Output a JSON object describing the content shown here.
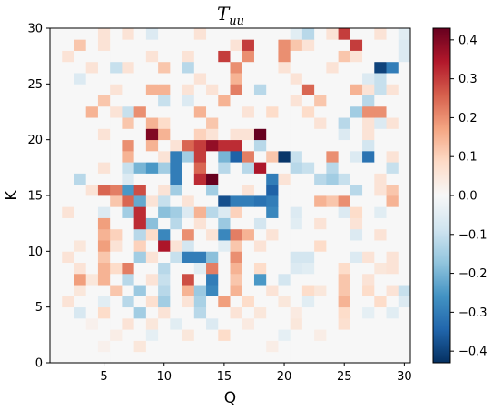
{
  "chart_data": {
    "type": "heatmap",
    "title": "T",
    "title_subscript": "uu",
    "xlabel": "Q",
    "ylabel": "K",
    "xlim": [
      0.5,
      30.5
    ],
    "ylim": [
      0,
      30
    ],
    "xticks": [
      5,
      10,
      15,
      20,
      25,
      30
    ],
    "xtick_labels": [
      "5",
      "10",
      "15",
      "20",
      "25",
      "30"
    ],
    "yticks": [
      0,
      5,
      10,
      15,
      20,
      25,
      30
    ],
    "ytick_labels": [
      "0",
      "5",
      "10",
      "15",
      "20",
      "25",
      "30"
    ],
    "grid": false,
    "colormap": "RdBu_r",
    "colormap_stops": [
      "#053061",
      "#2166ac",
      "#4393c3",
      "#92c5de",
      "#d1e5f0",
      "#f7f7f7",
      "#fddbc7",
      "#f4a582",
      "#d6604d",
      "#b2182b",
      "#67001f"
    ],
    "color_range": [
      -0.43,
      0.43
    ],
    "colorbar_ticks": [
      -0.4,
      -0.3,
      -0.2,
      -0.1,
      0.0,
      0.1,
      0.2,
      0.3,
      0.4
    ],
    "colorbar_tick_labels": [
      "−0.4",
      "−0.3",
      "−0.2",
      "−0.1",
      "0.0",
      "0.1",
      "0.2",
      "0.3",
      "0.4"
    ],
    "x_cells": 30,
    "y_cells": 30,
    "cells_note": "row index 0 = bottom row (K from 0 to 1), column index 0 = Q from 0.5 to 1.5",
    "values": [
      [
        0.0,
        0.0,
        0.0,
        0.0,
        0.0,
        0.0,
        0.0,
        0.0,
        0.0,
        0.0,
        0.0,
        0.0,
        0.0,
        0.0,
        0.0,
        0.0,
        0.0,
        0.0,
        0.0,
        0.0,
        0.0,
        0.0,
        0.0,
        0.0,
        0.0,
        0.0,
        0.0,
        0.0,
        0.0,
        0.0
      ],
      [
        0.0,
        0.0,
        0.0,
        0.0,
        0.02,
        0.0,
        0.0,
        0.05,
        0.0,
        0.0,
        0.0,
        0.0,
        0.0,
        0.0,
        0.0,
        0.0,
        0.0,
        0.0,
        0.03,
        0.0,
        0.0,
        0.0,
        0.0,
        0.0,
        0.0,
        0.0,
        0.0,
        0.0,
        0.0,
        0.0
      ],
      [
        0.0,
        0.0,
        0.0,
        0.0,
        0.0,
        0.03,
        0.0,
        0.0,
        -0.04,
        0.0,
        0.0,
        0.05,
        0.0,
        0.0,
        0.08,
        0.0,
        0.0,
        0.0,
        0.0,
        -0.04,
        0.0,
        0.0,
        0.03,
        0.0,
        0.0,
        0.0,
        0.0,
        0.0,
        0.0,
        0.0
      ],
      [
        0.0,
        0.0,
        0.0,
        0.02,
        0.0,
        0.0,
        0.06,
        0.0,
        0.05,
        0.0,
        -0.05,
        0.0,
        0.0,
        -0.06,
        0.0,
        0.0,
        0.04,
        0.0,
        0.0,
        0.0,
        0.05,
        0.0,
        0.0,
        0.0,
        0.07,
        0.0,
        0.0,
        0.0,
        0.0,
        0.0
      ],
      [
        0.0,
        0.0,
        -0.07,
        0.0,
        0.08,
        0.0,
        0.0,
        -0.15,
        0.0,
        0.06,
        0.0,
        0.0,
        -0.12,
        0.0,
        0.0,
        0.06,
        0.0,
        0.05,
        0.0,
        0.0,
        0.04,
        0.0,
        0.0,
        0.0,
        0.08,
        0.0,
        -0.04,
        0.0,
        -0.05,
        0.0
      ],
      [
        0.0,
        0.06,
        0.0,
        0.0,
        -0.05,
        0.0,
        -0.12,
        0.0,
        0.07,
        -0.15,
        0.0,
        0.06,
        -0.14,
        0.0,
        0.18,
        0.0,
        0.08,
        0.0,
        0.0,
        0.05,
        0.0,
        -0.05,
        0.0,
        0.0,
        0.15,
        0.0,
        0.0,
        0.08,
        0.0,
        -0.06
      ],
      [
        0.0,
        0.0,
        0.05,
        0.0,
        0.0,
        0.12,
        0.0,
        -0.16,
        0.0,
        -0.12,
        0.0,
        0.15,
        -0.16,
        -0.28,
        0.0,
        0.15,
        0.0,
        0.0,
        0.06,
        0.0,
        0.0,
        0.08,
        0.05,
        0.0,
        0.12,
        0.0,
        0.08,
        0.0,
        0.06,
        -0.1
      ],
      [
        0.0,
        0.0,
        0.18,
        0.05,
        0.15,
        0.0,
        -0.12,
        0.0,
        0.06,
        -0.1,
        0.0,
        0.28,
        0.0,
        -0.3,
        0.0,
        0.12,
        0.0,
        -0.25,
        0.0,
        -0.08,
        0.0,
        0.0,
        0.0,
        0.0,
        0.12,
        0.0,
        0.06,
        0.0,
        0.0,
        0.0
      ],
      [
        0.0,
        0.0,
        0.06,
        0.0,
        0.15,
        0.08,
        0.22,
        0.0,
        0.0,
        -0.12,
        0.0,
        0.0,
        -0.05,
        0.22,
        0.0,
        0.15,
        0.0,
        0.08,
        0.0,
        0.0,
        -0.06,
        -0.05,
        0.0,
        0.0,
        0.08,
        0.0,
        0.0,
        0.05,
        0.06,
        0.0
      ],
      [
        0.0,
        0.06,
        0.0,
        0.0,
        0.12,
        0.0,
        0.0,
        -0.15,
        0.06,
        0.0,
        -0.1,
        -0.3,
        -0.3,
        -0.18,
        0.0,
        0.2,
        0.0,
        0.0,
        0.0,
        0.0,
        -0.08,
        -0.08,
        0.0,
        0.0,
        0.0,
        -0.06,
        0.06,
        0.0,
        0.06,
        0.0
      ],
      [
        0.0,
        0.0,
        0.05,
        0.0,
        0.18,
        0.06,
        0.0,
        0.1,
        0.0,
        0.35,
        0.06,
        -0.08,
        0.0,
        0.0,
        -0.05,
        0.12,
        0.0,
        0.06,
        0.0,
        0.0,
        0.0,
        0.0,
        0.08,
        0.0,
        0.0,
        0.0,
        0.0,
        0.0,
        0.0,
        0.0
      ],
      [
        0.0,
        0.0,
        0.0,
        0.0,
        0.15,
        0.1,
        0.0,
        -0.12,
        0.08,
        -0.28,
        0.0,
        0.2,
        0.0,
        0.06,
        -0.28,
        0.22,
        0.15,
        0.0,
        0.06,
        0.0,
        0.0,
        0.0,
        0.0,
        0.0,
        0.0,
        -0.06,
        0.0,
        0.06,
        0.0,
        0.0
      ],
      [
        0.0,
        0.0,
        0.0,
        0.0,
        0.18,
        0.0,
        0.0,
        0.32,
        -0.18,
        0.0,
        -0.12,
        0.0,
        0.06,
        0.0,
        -0.16,
        0.0,
        0.0,
        -0.08,
        0.0,
        0.0,
        -0.05,
        0.0,
        0.06,
        0.0,
        0.0,
        0.06,
        0.0,
        0.0,
        0.0,
        0.0
      ],
      [
        0.0,
        0.06,
        0.0,
        0.0,
        -0.06,
        0.0,
        -0.15,
        0.32,
        0.0,
        -0.18,
        -0.15,
        -0.06,
        0.15,
        -0.12,
        -0.06,
        0.1,
        0.0,
        0.0,
        -0.28,
        0.0,
        -0.06,
        0.0,
        0.0,
        0.0,
        -0.06,
        0.08,
        0.0,
        -0.05,
        0.0,
        0.0
      ],
      [
        0.0,
        0.0,
        0.0,
        0.0,
        0.0,
        0.12,
        0.25,
        -0.22,
        0.06,
        -0.1,
        0.0,
        0.06,
        0.0,
        0.0,
        -0.38,
        -0.3,
        -0.3,
        -0.32,
        -0.3,
        0.0,
        0.0,
        0.0,
        0.15,
        0.12,
        0.2,
        0.0,
        0.0,
        0.0,
        0.15,
        0.0
      ],
      [
        0.0,
        0.0,
        0.0,
        0.06,
        0.25,
        0.22,
        -0.25,
        0.28,
        0.0,
        0.06,
        -0.15,
        0.0,
        0.0,
        -0.15,
        0.0,
        0.0,
        0.06,
        0.0,
        -0.35,
        0.0,
        0.0,
        0.0,
        0.0,
        0.0,
        0.0,
        -0.12,
        0.0,
        0.06,
        0.12,
        0.0
      ],
      [
        0.0,
        0.0,
        -0.12,
        0.0,
        0.0,
        0.0,
        -0.06,
        0.0,
        0.0,
        0.0,
        -0.3,
        0.0,
        0.32,
        0.43,
        0.0,
        0.0,
        0.0,
        0.0,
        -0.3,
        0.06,
        0.0,
        0.0,
        -0.12,
        -0.15,
        -0.1,
        0.0,
        0.0,
        0.06,
        0.0,
        0.0
      ],
      [
        0.0,
        0.0,
        0.0,
        0.0,
        0.06,
        0.0,
        -0.1,
        -0.2,
        -0.25,
        -0.15,
        -0.3,
        0.0,
        0.25,
        0.0,
        -0.12,
        0.0,
        -0.12,
        0.35,
        0.0,
        0.0,
        -0.12,
        -0.1,
        0.0,
        -0.12,
        0.0,
        0.0,
        0.0,
        0.0,
        -0.1,
        0.0
      ],
      [
        0.0,
        0.0,
        0.0,
        0.0,
        0.0,
        0.0,
        0.15,
        0.0,
        0.0,
        0.06,
        -0.3,
        -0.15,
        0.3,
        0.0,
        -0.2,
        -0.35,
        0.22,
        0.0,
        0.12,
        -0.42,
        -0.1,
        0.0,
        0.0,
        0.2,
        0.0,
        -0.06,
        -0.32,
        0.0,
        0.06,
        0.0
      ],
      [
        0.0,
        0.0,
        0.0,
        0.0,
        0.0,
        0.0,
        0.2,
        0.0,
        0.15,
        0.0,
        0.06,
        0.25,
        0.3,
        0.38,
        0.32,
        0.32,
        0.0,
        -0.12,
        0.0,
        0.0,
        0.0,
        0.0,
        0.0,
        0.0,
        0.0,
        0.0,
        -0.08,
        0.0,
        0.0,
        0.0
      ],
      [
        0.0,
        0.0,
        0.0,
        0.0,
        0.06,
        0.0,
        0.0,
        0.0,
        0.4,
        0.15,
        0.0,
        0.0,
        0.1,
        0.06,
        0.0,
        0.06,
        0.06,
        0.43,
        0.0,
        0.0,
        0.0,
        0.0,
        0.0,
        0.0,
        -0.06,
        0.0,
        0.06,
        0.0,
        0.0,
        0.0
      ],
      [
        0.0,
        0.0,
        0.0,
        0.0,
        0.0,
        0.0,
        0.12,
        0.0,
        0.15,
        0.08,
        0.0,
        0.0,
        0.0,
        0.12,
        0.0,
        0.0,
        0.0,
        0.0,
        0.0,
        0.0,
        0.0,
        0.0,
        0.06,
        0.0,
        -0.12,
        0.0,
        0.06,
        -0.06,
        0.06,
        0.0
      ],
      [
        0.0,
        0.0,
        0.0,
        0.15,
        0.0,
        0.06,
        -0.1,
        0.2,
        0.0,
        0.0,
        0.0,
        0.0,
        0.15,
        0.0,
        0.0,
        0.0,
        0.06,
        0.0,
        0.08,
        0.0,
        0.0,
        0.08,
        0.0,
        0.0,
        0.0,
        -0.15,
        0.2,
        0.2,
        0.0,
        0.0
      ],
      [
        0.0,
        0.0,
        0.0,
        0.0,
        0.12,
        0.0,
        0.0,
        0.0,
        0.0,
        -0.1,
        0.0,
        -0.06,
        0.0,
        0.0,
        0.15,
        0.0,
        0.0,
        0.0,
        0.0,
        0.0,
        0.06,
        0.0,
        0.12,
        0.0,
        0.0,
        0.0,
        -0.12,
        0.0,
        0.0,
        0.0
      ],
      [
        0.0,
        0.0,
        0.0,
        0.0,
        0.0,
        0.06,
        0.0,
        0.0,
        0.15,
        0.15,
        0.0,
        0.06,
        0.0,
        0.06,
        0.0,
        0.22,
        0.0,
        -0.12,
        0.0,
        0.0,
        0.0,
        0.25,
        0.0,
        0.0,
        0.0,
        0.15,
        0.06,
        -0.1,
        0.06,
        0.0
      ],
      [
        0.0,
        0.0,
        -0.06,
        0.0,
        0.0,
        0.0,
        0.0,
        0.0,
        0.0,
        0.0,
        0.0,
        0.0,
        0.06,
        0.0,
        0.0,
        0.15,
        0.0,
        0.0,
        0.0,
        0.0,
        0.06,
        0.0,
        0.0,
        0.0,
        0.0,
        0.0,
        -0.06,
        -0.1,
        0.0,
        0.0
      ],
      [
        0.0,
        0.0,
        0.0,
        0.06,
        0.0,
        -0.1,
        0.06,
        0.0,
        0.0,
        0.12,
        0.0,
        -0.12,
        0.0,
        0.0,
        0.0,
        0.2,
        0.0,
        0.0,
        0.0,
        0.06,
        0.0,
        0.0,
        0.0,
        0.06,
        0.0,
        0.0,
        0.0,
        -0.4,
        -0.3,
        0.0
      ],
      [
        0.0,
        0.06,
        0.0,
        0.0,
        0.0,
        0.0,
        0.0,
        0.0,
        0.06,
        0.0,
        0.0,
        0.06,
        0.0,
        0.0,
        0.3,
        0.0,
        0.2,
        0.0,
        0.0,
        0.2,
        0.0,
        0.0,
        0.0,
        0.0,
        0.12,
        0.06,
        0.0,
        0.0,
        0.0,
        -0.06
      ],
      [
        0.0,
        0.0,
        0.12,
        0.0,
        0.06,
        0.0,
        0.0,
        0.0,
        0.0,
        0.0,
        0.0,
        0.0,
        0.0,
        0.0,
        0.0,
        0.06,
        0.3,
        0.0,
        0.0,
        0.2,
        0.12,
        0.06,
        0.0,
        0.0,
        0.0,
        0.3,
        0.0,
        0.0,
        0.0,
        -0.06
      ],
      [
        0.0,
        0.0,
        0.0,
        0.0,
        0.06,
        0.0,
        0.06,
        0.0,
        -0.06,
        0.0,
        0.0,
        0.0,
        0.06,
        0.0,
        0.0,
        0.0,
        0.0,
        0.0,
        0.0,
        0.0,
        -0.05,
        -0.12,
        0.0,
        0.06,
        0.3,
        0.0,
        0.0,
        0.06,
        0.0,
        -0.05
      ]
    ]
  }
}
